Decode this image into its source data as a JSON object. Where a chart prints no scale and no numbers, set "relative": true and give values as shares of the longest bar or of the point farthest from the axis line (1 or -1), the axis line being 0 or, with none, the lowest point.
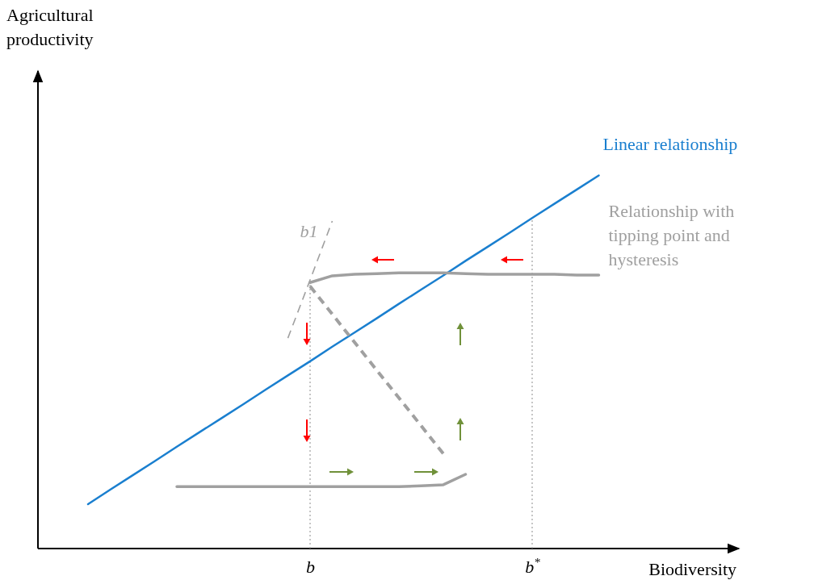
{
  "chart_data": {
    "type": "line",
    "relative": true,
    "xlabel": "Biodiversity",
    "annotations": [
      "Agricultural productivity"
    ],
    "tick_labels": "x",
    "categories": [
      null,
      null,
      null,
      null,
      null,
      null,
      null,
      null,
      null,
      null,
      null,
      null,
      "b",
      null,
      null,
      null,
      null,
      null,
      null,
      null,
      null,
      null,
      "b$^{*}$",
      null,
      null,
      null,
      null
    ],
    "ref_lines": [
      {
        "axis": "x",
        "value": "b",
        "color": "#a0a0a0",
        "line_style": "dotted"
      },
      {
        "axis": "x",
        "value": "b$^{*}$",
        "color": "#a0a0a0",
        "line_style": "dotted"
      }
    ],
    "series": [
      {
        "name": "Linear relationship",
        "color": "#1a7fcf",
        "line_style": "solid",
        "values": [
          null,
          null,
          0.119,
          0.158,
          0.196,
          0.234,
          0.273,
          0.311,
          0.349,
          0.387,
          0.426,
          0.464,
          0.502,
          0.541,
          0.579,
          0.617,
          0.656,
          0.694,
          0.732,
          0.771,
          0.809,
          0.847,
          0.886,
          0.924,
          0.962,
          1.0,
          null
        ]
      },
      {
        "name": "Relationship with tipping point and hysteresis",
        "color": "#a0a0a0",
        "line_style": "solid",
        "values": [
          null,
          null,
          null,
          null,
          null,
          null,
          null,
          null,
          null,
          null,
          null,
          null,
          0.713,
          0.731,
          0.735,
          0.737,
          0.739,
          0.739,
          0.739,
          0.737,
          0.735,
          0.735,
          0.735,
          0.735,
          0.733,
          0.733,
          null
        ]
      },
      {
        "color": "#a0a0a0",
        "line_style": "dashed",
        "values": [
          null,
          null,
          null,
          null,
          null,
          null,
          null,
          null,
          null,
          null,
          null,
          null,
          0.703,
          0.628,
          0.553,
          0.478,
          0.404,
          0.329,
          0.254,
          null,
          null,
          null,
          null,
          null,
          null,
          null,
          null
        ]
      },
      {
        "color": "#a0a0a0",
        "line_style": "solid",
        "values": [
          null,
          null,
          null,
          null,
          null,
          null,
          0.166,
          0.166,
          0.166,
          0.166,
          0.166,
          0.166,
          0.166,
          0.166,
          0.166,
          0.166,
          0.166,
          0.168,
          0.171,
          0.199,
          null,
          null,
          null,
          null,
          null,
          null,
          null
        ]
      },
      {
        "name": "b1",
        "color": "#a0a0a0",
        "line_style": "dashed",
        "values": [
          null,
          null,
          null,
          null,
          null,
          null,
          null,
          null,
          null,
          null,
          null,
          0.564,
          0.72,
          0.878,
          null,
          null,
          null,
          null,
          null,
          null,
          null,
          null,
          null,
          null,
          null,
          null,
          null
        ]
      }
    ]
  }
}
